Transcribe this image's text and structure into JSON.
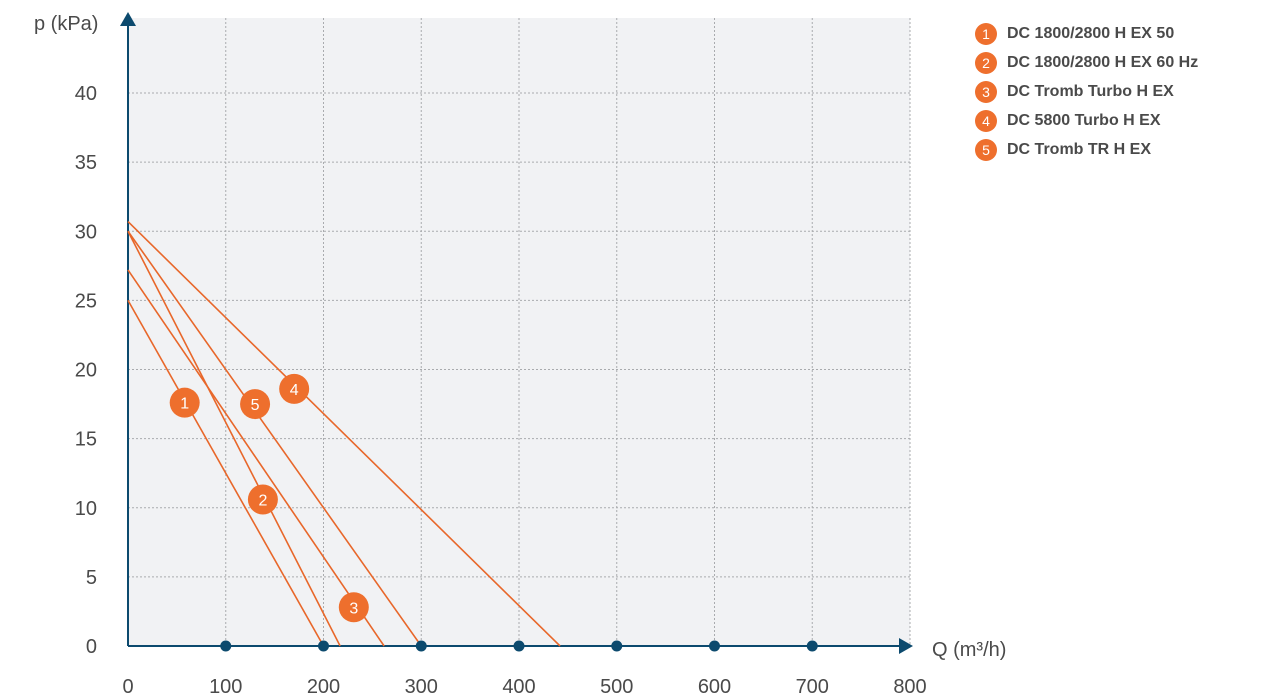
{
  "chart_data": {
    "type": "line",
    "xlabel": "Q (m³/h)",
    "ylabel": "p (kPa)",
    "xlim": [
      0,
      800
    ],
    "ylim": [
      0,
      45
    ],
    "x_ticks": [
      "0",
      "100",
      "200",
      "300",
      "400",
      "500",
      "600",
      "700",
      "800"
    ],
    "y_ticks": [
      "0",
      "5",
      "10",
      "15",
      "20",
      "25",
      "30",
      "35",
      "40"
    ],
    "x_axis_markers": [
      100,
      200,
      300,
      400,
      500,
      600,
      700
    ],
    "grid": true,
    "legend_position": "top-right",
    "series": [
      {
        "id": "1",
        "name": "DC 1800/2800 H EX 50",
        "x": [
          0,
          200
        ],
        "y": [
          25,
          0
        ],
        "label_at": [
          58,
          17.6
        ]
      },
      {
        "id": "2",
        "name": "DC 1800/2800 H EX 60 Hz",
        "x": [
          0,
          217
        ],
        "y": [
          30,
          0
        ],
        "label_at": [
          138,
          10.6
        ]
      },
      {
        "id": "3",
        "name": "DC Tromb Turbo H EX",
        "x": [
          0,
          262
        ],
        "y": [
          27.2,
          0
        ],
        "label_at": [
          231,
          2.8
        ]
      },
      {
        "id": "4",
        "name": "DC 5800 Turbo H EX",
        "x": [
          0,
          442
        ],
        "y": [
          30.7,
          0
        ],
        "label_at": [
          170,
          18.6
        ]
      },
      {
        "id": "5",
        "name": "DC Tromb TR H EX",
        "x": [
          0,
          300
        ],
        "y": [
          30,
          0
        ],
        "label_at": [
          130,
          17.5
        ]
      }
    ],
    "colors": {
      "line": "#e8672a",
      "badge": "#ee6f2d",
      "grid": "#a9abae",
      "plot_bg": "#f1f2f4",
      "axis": "#0c4a6e",
      "marker": "#0c4a6e"
    }
  }
}
